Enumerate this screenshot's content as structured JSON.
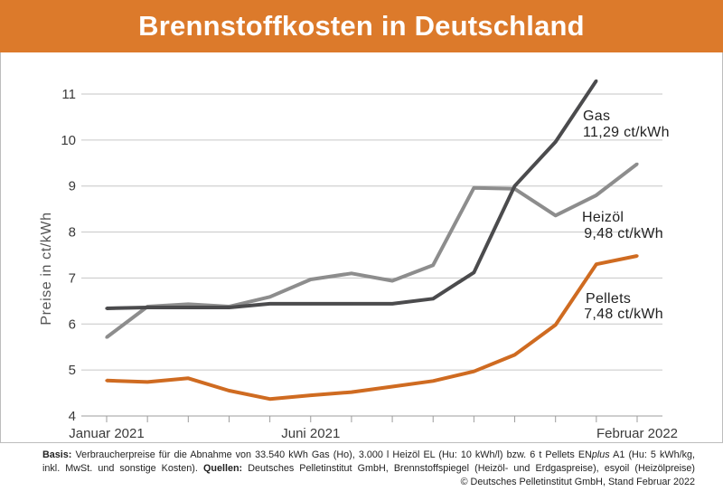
{
  "colors": {
    "header": "#dc7a2b"
  },
  "chart_data": {
    "type": "line",
    "title": "Brennstoffkosten in Deutschland",
    "ylabel": "Preise in ct/kWh",
    "ylim": [
      4,
      11
    ],
    "yticks": [
      4,
      5,
      6,
      7,
      8,
      9,
      10,
      11
    ],
    "grid": true,
    "x": [
      "2021-01",
      "2021-02",
      "2021-03",
      "2021-04",
      "2021-05",
      "2021-06",
      "2021-07",
      "2021-08",
      "2021-09",
      "2021-10",
      "2021-11",
      "2021-12",
      "2022-01",
      "2022-02"
    ],
    "xticks": [
      {
        "x": "2021-01",
        "label": "Januar 2021"
      },
      {
        "x": "2021-06",
        "label": "Juni 2021"
      },
      {
        "x": "2022-02",
        "label": "Februar 2022"
      }
    ],
    "series": [
      {
        "name": "Gas",
        "annotation": "11,29 ct/kWh",
        "color": "#4b4b4d",
        "values": [
          6.34,
          6.36,
          6.36,
          6.36,
          6.44,
          6.44,
          6.44,
          6.44,
          6.55,
          7.12,
          9.0,
          9.96,
          11.29,
          null
        ]
      },
      {
        "name": "Heizöl",
        "annotation": "9,48 ct/kWh",
        "color": "#8d8d8d",
        "values": [
          5.71,
          6.38,
          6.43,
          6.38,
          6.59,
          6.97,
          7.1,
          6.94,
          7.28,
          8.96,
          8.94,
          8.36,
          8.8,
          9.48
        ]
      },
      {
        "name": "Pellets",
        "annotation": "7,48 ct/kWh",
        "color": "#cf6b21",
        "values": [
          4.77,
          4.74,
          4.82,
          4.55,
          4.37,
          4.45,
          4.52,
          4.64,
          4.76,
          4.97,
          5.33,
          5.98,
          7.3,
          7.48
        ]
      }
    ]
  },
  "footnote": {
    "basis_label": "Basis:",
    "basis_text_1": " Verbraucherpreise für die Abnahme von 33.540 kWh Gas (Ho), 3.000 l Heizöl EL (Hu: 10 kWh/l) bzw. 6 t Pellets EN",
    "basis_text_italic": "plus",
    "basis_text_2": " A1 (Hu: 5 kWh/kg,",
    "basis_text_3": "inkl. MwSt. und sonstige Kosten). ",
    "sources_label": "Quellen:",
    "sources_text": " Deutsches Pelletinstitut GmbH, Brennstoffspiegel (Heizöl- und Erdgaspreise), esyoil (Heizölpreise)",
    "copyright": "© Deutsches Pelletinstitut GmbH, Stand Februar 2022"
  }
}
